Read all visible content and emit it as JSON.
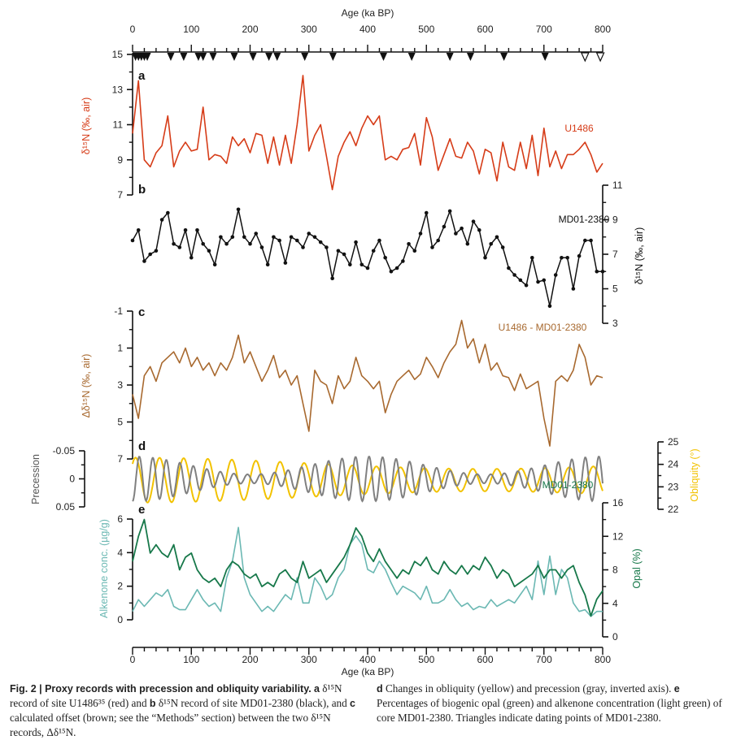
{
  "chart_data": {
    "type": "line",
    "xlabel": "Age (ka BP)",
    "xlim": [
      0,
      800
    ],
    "xticks": [
      "0",
      "100",
      "200",
      "300",
      "400",
      "500",
      "600",
      "700",
      "800"
    ],
    "dating_points": {
      "filled": [
        5,
        10,
        15,
        20,
        25,
        65,
        87,
        112,
        120,
        137,
        173,
        205,
        232,
        246,
        293,
        341,
        427,
        475,
        540,
        575,
        632,
        702
      ],
      "open": [
        770,
        796
      ]
    },
    "age_step": 10,
    "panels": [
      {
        "letter": "a",
        "label": "U1486",
        "ylabel": "δ¹⁵N (‰, air)",
        "axis": "left",
        "ylim": [
          7,
          15
        ],
        "yticks": [
          "15",
          "13",
          "11",
          "9",
          "7"
        ],
        "color": "#d63c18",
        "values": [
          10.5,
          13.5,
          9,
          8.6,
          9.4,
          9.8,
          11.5,
          8.6,
          9.5,
          10,
          9.5,
          9.6,
          12,
          9,
          9.3,
          9.2,
          8.8,
          10.3,
          9.8,
          10.2,
          9.4,
          10.5,
          10.4,
          8.8,
          10.3,
          8.7,
          10.4,
          8.8,
          11,
          13.8,
          9.5,
          10.4,
          11,
          9.2,
          7.3,
          9.2,
          10,
          10.6,
          9.8,
          10.8,
          11.5,
          11,
          11.5,
          9,
          9.2,
          9,
          9.6,
          9.7,
          10.5,
          8.7,
          11.4,
          10.3,
          8.4,
          9.3,
          10.2,
          9.2,
          9.1,
          10,
          9.5,
          8.2,
          9.6,
          9.4,
          7.8,
          10,
          8.6,
          8.4,
          10,
          8.5,
          10.4,
          8.1,
          10.8,
          8.6,
          9.5,
          8.5,
          9.3,
          9.3,
          9.6,
          10,
          9.3,
          8.3,
          8.8
        ]
      },
      {
        "letter": "b",
        "label": "MD01-2380",
        "ylabel": "δ¹⁵N (‰, air)",
        "axis": "right",
        "ylim": [
          3,
          11
        ],
        "yticks": [
          "11",
          "9",
          "7",
          "5",
          "3"
        ],
        "color": "#111111",
        "values": [
          7.8,
          8.4,
          6.6,
          7,
          7.2,
          9,
          9.4,
          7.6,
          7.4,
          8.4,
          6.8,
          8.4,
          7.6,
          7.2,
          6.4,
          8,
          7.6,
          8,
          9.6,
          8,
          7.6,
          8.2,
          7.4,
          6.4,
          8,
          7.8,
          6.5,
          8,
          7.8,
          7.4,
          8.2,
          8,
          7.7,
          7.4,
          5.6,
          7.2,
          7,
          6.4,
          7.7,
          6.4,
          6.2,
          7.2,
          7.8,
          6.8,
          6,
          6.2,
          6.6,
          7.6,
          7.2,
          8.2,
          9.4,
          7.4,
          7.8,
          8.6,
          9.5,
          8.2,
          8.5,
          7.6,
          8.9,
          8.4,
          6.8,
          7.6,
          8,
          7.4,
          6.2,
          5.8,
          5.5,
          5.2,
          6.8,
          5.4,
          5.5,
          4,
          5.8,
          6.8,
          6.8,
          5,
          6.9,
          7.8,
          7.8,
          6,
          6
        ]
      },
      {
        "letter": "c",
        "label": "U1486 - MD01-2380",
        "ylabel": "Δδ¹⁵N (‰, air)",
        "axis": "left",
        "ylim": [
          -1,
          7
        ],
        "inverted": true,
        "yticks": [
          "-1",
          "1",
          "3",
          "5",
          "7"
        ],
        "color": "#a8692f",
        "values": [
          3.5,
          4.8,
          2.5,
          2,
          2.8,
          1.8,
          1.5,
          1.2,
          1.8,
          1,
          2,
          1.5,
          2.2,
          1.8,
          2.5,
          1.8,
          2.2,
          1.5,
          0.3,
          1.8,
          1.2,
          2,
          2.8,
          2.2,
          1.4,
          2.6,
          2.2,
          3,
          2.5,
          4,
          5.5,
          2.2,
          2.8,
          3,
          4,
          2.5,
          3.2,
          2.8,
          1.5,
          2.5,
          2.8,
          3.2,
          2.8,
          4.5,
          3.5,
          2.8,
          2.5,
          2.2,
          2.7,
          2.4,
          1.5,
          2,
          2.6,
          1.8,
          1.2,
          0.8,
          -0.5,
          1,
          0.5,
          1.8,
          0.8,
          2.2,
          1.8,
          2.5,
          2.6,
          3.3,
          2.4,
          3.2,
          3,
          2.8,
          4.8,
          6.3,
          2.8,
          2.5,
          2.8,
          2.2,
          0.8,
          1.5,
          3,
          2.5,
          2.6
        ]
      },
      {
        "letter": "d",
        "precession": {
          "label": "Precession",
          "ylim": [
            -0.05,
            0.05
          ],
          "inverted": true,
          "yticks": [
            "-0.05",
            "0",
            "0.05"
          ],
          "color": "#808080",
          "period_ka": 23,
          "amplitude": 0.04
        },
        "obliquity": {
          "label": "Obliquity (°)",
          "ylim": [
            22,
            25
          ],
          "yticks": [
            "25",
            "24",
            "23",
            "22"
          ],
          "color": "#f2c200",
          "period_ka": 41,
          "mean": 23.3,
          "amplitude": 1.0
        }
      },
      {
        "letter": "e",
        "label": "MD01-2380",
        "alkenone": {
          "label": "Alkenone conc. (µg/g)",
          "ylim": [
            0,
            6
          ],
          "yticks": [
            "6",
            "4",
            "2",
            "0"
          ],
          "color": "#6bb8b3",
          "values": [
            0.5,
            1.2,
            0.8,
            1.2,
            1.6,
            1.4,
            1.8,
            0.8,
            0.6,
            0.6,
            1.2,
            1.8,
            1.2,
            0.8,
            1,
            0.5,
            2.5,
            3.5,
            5.5,
            2.5,
            1.5,
            1,
            0.5,
            0.8,
            0.5,
            1,
            1.5,
            1.2,
            2.5,
            1,
            1,
            2.5,
            2,
            1.2,
            1.5,
            2.5,
            3,
            4.5,
            5,
            4.5,
            3,
            2.8,
            3.5,
            3,
            2.2,
            1.5,
            2,
            1.8,
            1.6,
            1.2,
            2,
            1,
            1,
            1.2,
            1.8,
            1.2,
            0.8,
            1,
            0.6,
            0.8,
            0.7,
            1.2,
            0.8,
            1,
            1.2,
            1,
            1.5,
            2,
            1.2,
            3.5,
            1.5,
            3.8,
            1.5,
            3,
            2.5,
            1,
            0.5,
            0.6,
            0.2,
            0.5,
            0.5
          ]
        },
        "opal": {
          "label": "Opal (%)",
          "ylim": [
            0,
            16
          ],
          "yticks": [
            "16",
            "12",
            "8",
            "4",
            "0"
          ],
          "color": "#17784a",
          "values": [
            9,
            12,
            14,
            10,
            11,
            10,
            9.5,
            11,
            8,
            9.5,
            10,
            8,
            7,
            6.5,
            7,
            6,
            8,
            9,
            8.5,
            7.5,
            7,
            7.5,
            6,
            6.5,
            6,
            7.5,
            8,
            7,
            6.5,
            9,
            7,
            7.5,
            8,
            6.5,
            7.5,
            8.5,
            9.5,
            11,
            13,
            12,
            10,
            9,
            10.5,
            9,
            8,
            7,
            8,
            7.5,
            9,
            8.5,
            9.5,
            8,
            7.5,
            9,
            8,
            7.5,
            8.5,
            7.5,
            8.5,
            8,
            9.5,
            8.5,
            7,
            8,
            7.5,
            6,
            6.5,
            7,
            7.5,
            8.5,
            7,
            8,
            8,
            7,
            8,
            8.5,
            6.5,
            5,
            2.5,
            4.5,
            5.5
          ]
        }
      }
    ]
  },
  "caption": {
    "left_bold": "Fig. 2 | Proxy records with precession and obliquity variability.",
    "left_a": "a",
    "left_t1": "δ¹⁵N record of site U1486³⁵ (red) and",
    "left_b": "b",
    "left_t2": "δ¹⁵N record of site MD01-2380 (black), and",
    "left_c": "c",
    "left_t3": "calculated offset (brown; see the “Methods” section) between the two δ¹⁵N records, Δδ¹⁵N.",
    "right_d": "d",
    "right_t1": "Changes in obliquity (yellow) and precession (gray, inverted axis).",
    "right_e": "e",
    "right_t2": "Percentages of biogenic opal (green) and alkenone concentration (light green) of core MD01-2380. Triangles indicate dating points of MD01-2380."
  }
}
